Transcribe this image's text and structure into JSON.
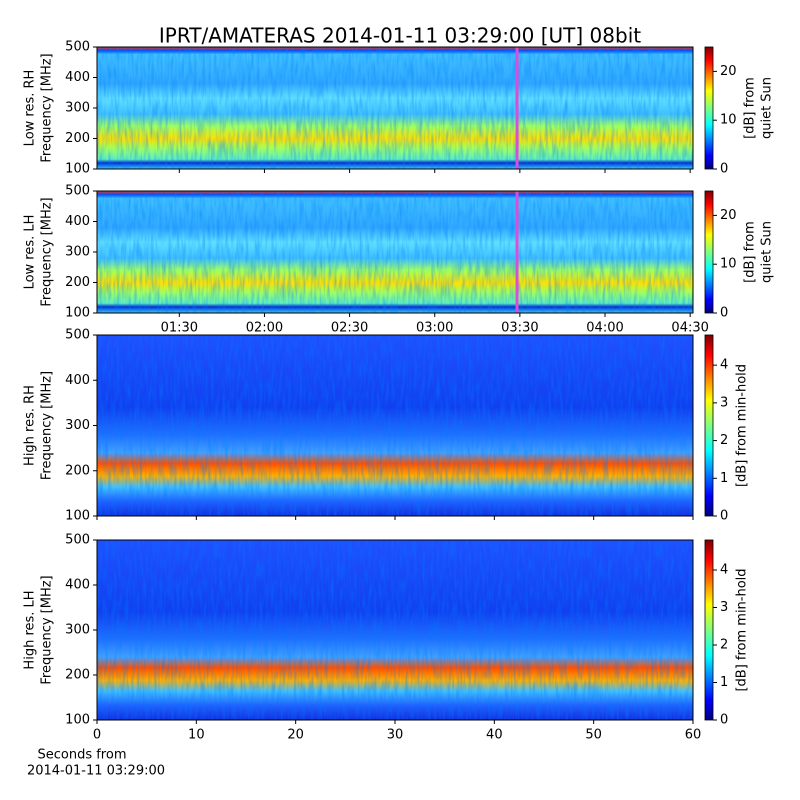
{
  "title": "IPRT/AMATERAS 2014-01-11 03:29:00 [UT]   08bit",
  "xlabel": [
    "Seconds from",
    "2014-01-11 03:29:00"
  ],
  "chart_data": [
    {
      "type": "spectrogram",
      "ylabel": [
        "Low res. RH",
        "Frequency [MHz]"
      ],
      "xlim": [
        61,
        271
      ],
      "xticks": [
        90,
        120,
        150,
        180,
        210,
        240,
        270
      ],
      "xtick_labels": false,
      "ylim": [
        100,
        500
      ],
      "yticks": [
        100,
        200,
        300,
        400,
        500
      ],
      "marker": {
        "x": 209,
        "color": "#d94fd9"
      },
      "colorbar": {
        "label": [
          "[dB] from",
          "quiet Sun"
        ],
        "lim": [
          0,
          25
        ],
        "ticks": [
          0,
          10,
          20
        ]
      }
    },
    {
      "type": "spectrogram",
      "ylabel": [
        "Low res. LH",
        "Frequency [MHz]"
      ],
      "xlim": [
        61,
        271
      ],
      "xticks": [
        {
          "value": 90,
          "label": "01:30"
        },
        {
          "value": 120,
          "label": "02:00"
        },
        {
          "value": 150,
          "label": "02:30"
        },
        {
          "value": 180,
          "label": "03:00"
        },
        {
          "value": 210,
          "label": "03:30"
        },
        {
          "value": 240,
          "label": "04:00"
        },
        {
          "value": 270,
          "label": "04:30"
        }
      ],
      "xtick_labels": true,
      "ylim": [
        100,
        500
      ],
      "yticks": [
        100,
        200,
        300,
        400,
        500
      ],
      "marker": {
        "x": 209,
        "color": "#d94fd9"
      },
      "colorbar": {
        "label": [
          "[dB] from",
          "quiet Sun"
        ],
        "lim": [
          0,
          25
        ],
        "ticks": [
          0,
          10,
          20
        ]
      }
    },
    {
      "type": "spectrogram",
      "ylabel": [
        "High res. RH",
        "Frequency [MHz]"
      ],
      "xlim": [
        0,
        60
      ],
      "xticks": [
        0,
        10,
        20,
        30,
        40,
        50,
        60
      ],
      "xtick_labels": false,
      "ylim": [
        100,
        500
      ],
      "yticks": [
        100,
        200,
        300,
        400,
        500
      ],
      "colorbar": {
        "label": [
          "[dB] from min-hold"
        ],
        "lim": [
          0,
          4.8
        ],
        "ticks": [
          0,
          1,
          2,
          3,
          4
        ]
      }
    },
    {
      "type": "spectrogram",
      "ylabel": [
        "High res. LH",
        "Frequency [MHz]"
      ],
      "xlim": [
        0,
        60
      ],
      "xticks": [
        0,
        10,
        20,
        30,
        40,
        50,
        60
      ],
      "xtick_labels": true,
      "ylim": [
        100,
        500
      ],
      "yticks": [
        100,
        200,
        300,
        400,
        500
      ],
      "colorbar": {
        "label": [
          "[dB] from min-hold"
        ],
        "lim": [
          0,
          4.8
        ],
        "ticks": [
          0,
          1,
          2,
          3,
          4
        ]
      }
    }
  ]
}
